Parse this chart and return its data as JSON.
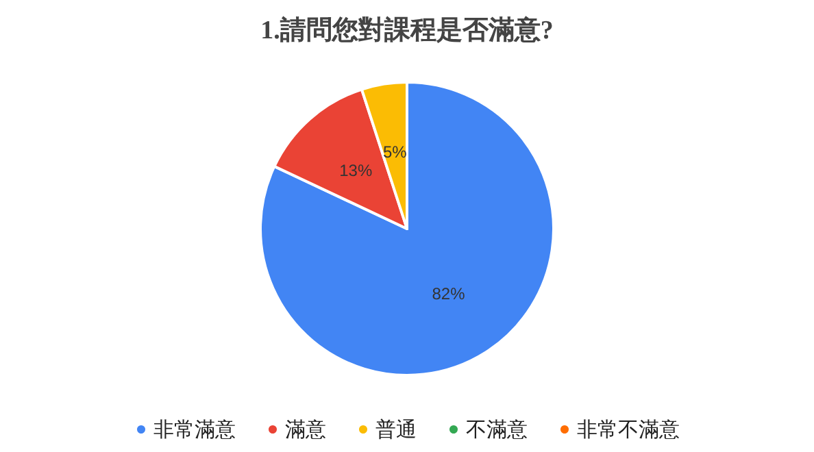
{
  "chart_data": {
    "type": "pie",
    "title": "1.請問您對課程是否滿意?",
    "categories": [
      "非常滿意",
      "滿意",
      "普通",
      "不滿意",
      "非常不滿意"
    ],
    "values": [
      82,
      13,
      5,
      0,
      0
    ],
    "colors": [
      "#4285f4",
      "#ea4335",
      "#fbbc04",
      "#34a853",
      "#ff6d01"
    ],
    "value_labels": [
      "82%",
      "13%",
      "5%",
      null,
      null
    ],
    "legend": "bottom"
  }
}
